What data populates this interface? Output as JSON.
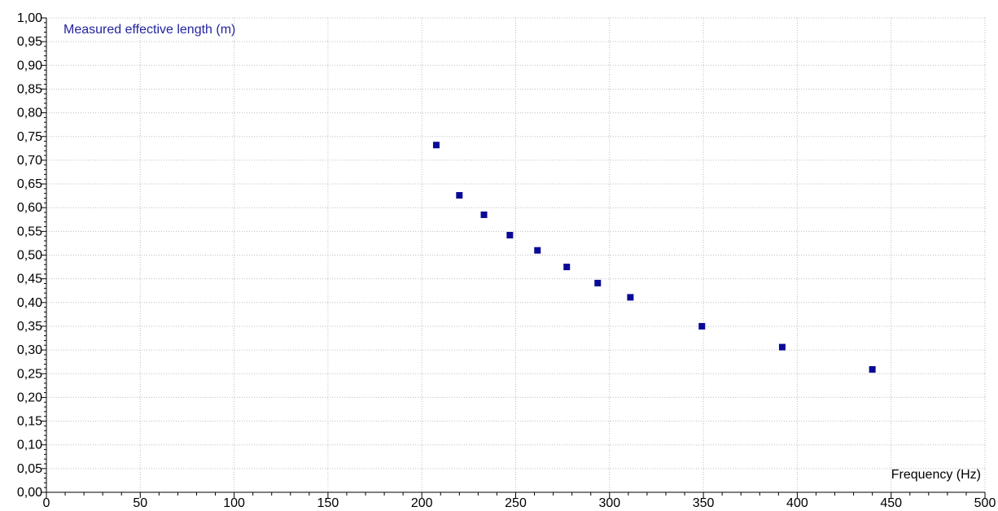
{
  "chart_data": {
    "type": "scatter",
    "ylabel": "Measured effective length  (m)",
    "xlabel": "Frequency (Hz)",
    "xlim": [
      0,
      500
    ],
    "ylim": [
      0,
      1.0
    ],
    "x_ticks": [
      "0",
      "50",
      "100",
      "150",
      "200",
      "250",
      "300",
      "350",
      "400",
      "450",
      "500"
    ],
    "y_ticks": [
      "0,00",
      "0,05",
      "0,10",
      "0,15",
      "0,20",
      "0,25",
      "0,30",
      "0,35",
      "0,40",
      "0,45",
      "0,50",
      "0,55",
      "0,60",
      "0,65",
      "0,70",
      "0,75",
      "0,80",
      "0,85",
      "0,90",
      "0,95",
      "1,00"
    ],
    "grid": true,
    "series": [
      {
        "points": [
          {
            "x": 207.7,
            "y": 0.732
          },
          {
            "x": 220.0,
            "y": 0.626
          },
          {
            "x": 233.1,
            "y": 0.585
          },
          {
            "x": 246.9,
            "y": 0.542
          },
          {
            "x": 261.6,
            "y": 0.51
          },
          {
            "x": 277.2,
            "y": 0.475
          },
          {
            "x": 293.7,
            "y": 0.441
          },
          {
            "x": 311.1,
            "y": 0.411
          },
          {
            "x": 349.2,
            "y": 0.35
          },
          {
            "x": 392.0,
            "y": 0.306
          },
          {
            "x": 440.0,
            "y": 0.259
          }
        ]
      }
    ],
    "colors": {
      "marker": "#0a0a96",
      "axis_title": "#2323a0",
      "grid": "#bdbdbd",
      "axis": "#000000"
    }
  }
}
